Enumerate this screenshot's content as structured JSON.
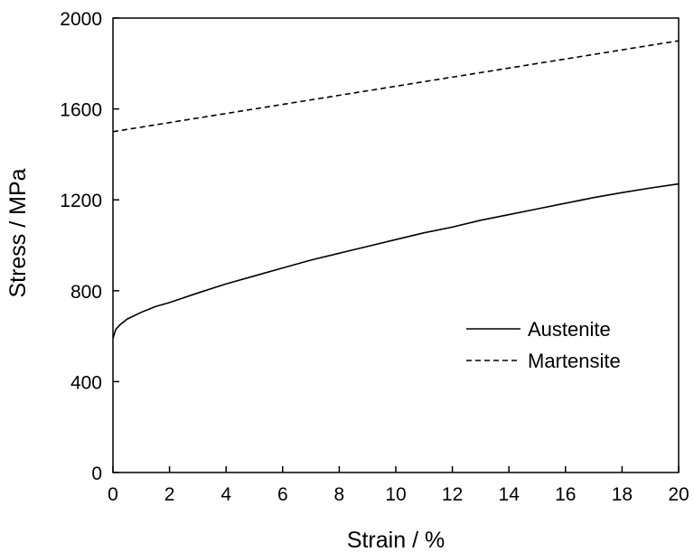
{
  "chart_data": {
    "type": "line",
    "title": "",
    "xlabel": "Strain / %",
    "ylabel": "Stress / MPa",
    "xlim": [
      0,
      20
    ],
    "ylim": [
      0,
      2000
    ],
    "xticks": [
      0,
      2,
      4,
      6,
      8,
      10,
      12,
      14,
      16,
      18,
      20
    ],
    "yticks": [
      0,
      400,
      800,
      1200,
      1600,
      2000
    ],
    "xtick_labels": [
      "0",
      "2",
      "4",
      "6",
      "8",
      "10",
      "12",
      "14",
      "16",
      "18",
      "20"
    ],
    "ytick_labels": [
      "0",
      "400",
      "800",
      "1200",
      "1600",
      "2000"
    ],
    "grid": false,
    "legend_position": "center-right",
    "series": [
      {
        "name": "Austenite",
        "style": "solid",
        "color": "#000000",
        "x": [
          0,
          0.1,
          0.25,
          0.5,
          1,
          1.5,
          2,
          3,
          4,
          5,
          6,
          7,
          8,
          9,
          10,
          11,
          12,
          13,
          14,
          15,
          16,
          17,
          18,
          19,
          20
        ],
        "y": [
          590,
          630,
          650,
          675,
          705,
          730,
          748,
          790,
          830,
          865,
          900,
          935,
          965,
          995,
          1025,
          1055,
          1080,
          1110,
          1135,
          1160,
          1185,
          1210,
          1232,
          1252,
          1270
        ]
      },
      {
        "name": "Martensite",
        "style": "dashed",
        "color": "#000000",
        "x": [
          0,
          2,
          4,
          6,
          8,
          10,
          12,
          14,
          16,
          18,
          20
        ],
        "y": [
          1500,
          1540,
          1580,
          1620,
          1660,
          1700,
          1740,
          1780,
          1820,
          1860,
          1900
        ]
      }
    ]
  }
}
